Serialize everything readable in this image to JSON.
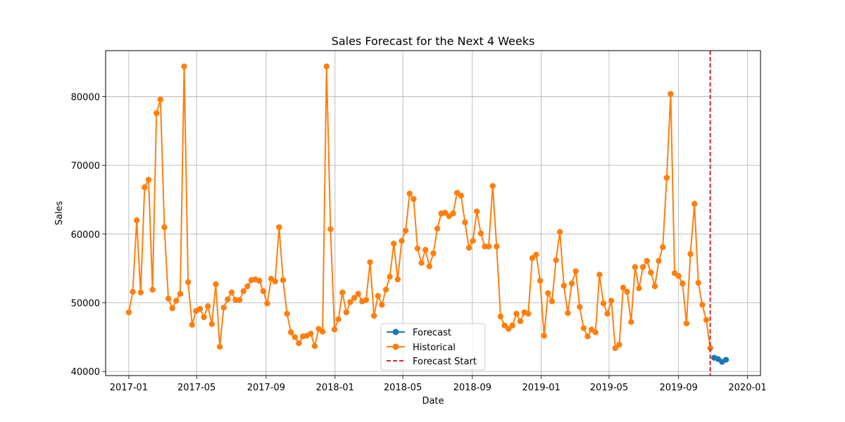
{
  "chart_data": {
    "type": "line",
    "title": "Sales Forecast for the Next 4 Weeks",
    "xlabel": "Date",
    "ylabel": "Sales",
    "xlim": [
      "2016-11-21",
      "2020-01-24"
    ],
    "ylim": [
      39400,
      86700
    ],
    "grid": true,
    "x_ticks": [
      "2017-01",
      "2017-05",
      "2017-09",
      "2018-01",
      "2018-05",
      "2018-09",
      "2019-01",
      "2019-05",
      "2019-09",
      "2020-01"
    ],
    "y_ticks": [
      40000,
      50000,
      60000,
      70000,
      80000
    ],
    "legend_position": "lower-center",
    "legend": [
      "Forecast",
      "Historical",
      "Forecast Start"
    ],
    "forecast_start": "2019-10-27",
    "series": [
      {
        "name": "Historical",
        "color": "#ff7f0e",
        "marker": "circle",
        "start": "2017-01-01",
        "interval_days": 7,
        "values": [
          48600,
          51600,
          62000,
          51500,
          66800,
          67900,
          51900,
          77600,
          79600,
          61000,
          50600,
          49200,
          50300,
          51300,
          84400,
          53000,
          46800,
          48800,
          49100,
          47900,
          49500,
          46900,
          52700,
          43600,
          49300,
          50500,
          51500,
          50400,
          50400,
          51700,
          52400,
          53300,
          53400,
          53200,
          51700,
          49900,
          53500,
          53100,
          61000,
          53300,
          48400,
          45700,
          45000,
          44100,
          45100,
          45200,
          45500,
          43700,
          46200,
          45800,
          84400,
          60700,
          46100,
          47600,
          51500,
          48600,
          50100,
          50700,
          51300,
          50200,
          50400,
          55900,
          48100,
          51000,
          49700,
          51900,
          53800,
          58600,
          53400,
          59000,
          60500,
          65900,
          65100,
          57900,
          55800,
          57700,
          55300,
          57200,
          60800,
          63000,
          63100,
          62600,
          63000,
          66000,
          65600,
          61700,
          58000,
          59000,
          63300,
          60100,
          58200,
          58200,
          67000,
          58200,
          48000,
          46700,
          46200,
          46700,
          48400,
          47300,
          48600,
          48400,
          56500,
          57000,
          53200,
          45200,
          51400,
          50200,
          56200,
          60300,
          52500,
          48500,
          52800,
          54600,
          49400,
          46300,
          45100,
          46100,
          45700,
          54100,
          49900,
          48400,
          50300,
          43400,
          43900,
          52200,
          51600,
          47200,
          55200,
          52100,
          55200,
          56100,
          54400,
          52400,
          56100,
          58100,
          68200,
          80400,
          54300,
          53900,
          52800,
          47000,
          57100,
          64400,
          52900,
          49700,
          47500,
          43400
        ]
      },
      {
        "name": "Forecast",
        "color": "#1f77b4",
        "marker": "circle",
        "x": [
          "2019-11-03",
          "2019-11-10",
          "2019-11-17",
          "2019-11-24"
        ],
        "values": [
          42000,
          41800,
          41400,
          41700
        ]
      }
    ]
  }
}
